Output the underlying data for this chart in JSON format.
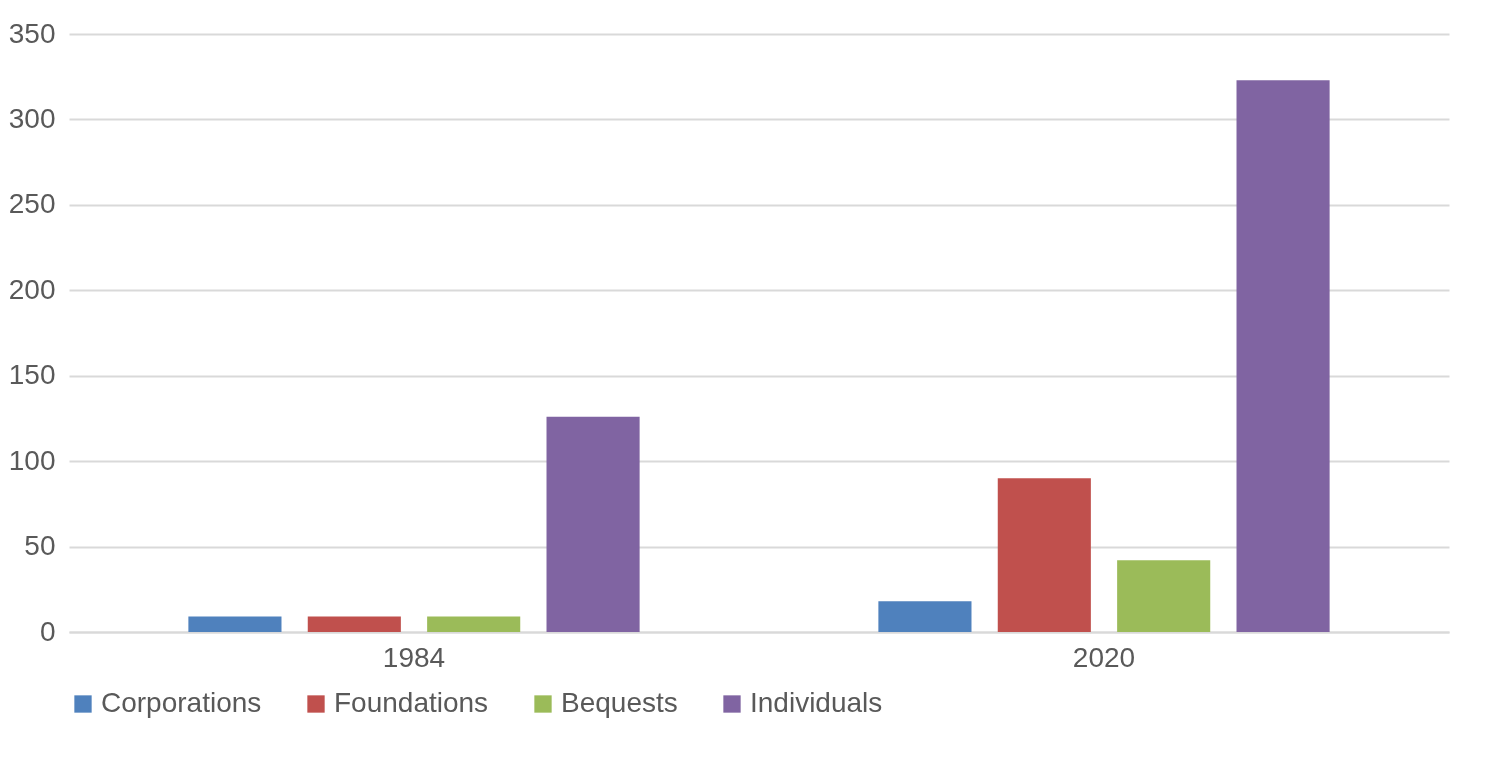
{
  "chart_data": {
    "type": "bar",
    "categories": [
      "1984",
      "2020"
    ],
    "series": [
      {
        "name": "Corporations",
        "color": "#4f81bd",
        "values": [
          9,
          18
        ]
      },
      {
        "name": "Foundations",
        "color": "#c0504d",
        "values": [
          9,
          90
        ]
      },
      {
        "name": "Bequests",
        "color": "#9bbb59",
        "values": [
          9,
          42
        ]
      },
      {
        "name": "Individuals",
        "color": "#8064a2",
        "values": [
          126,
          323
        ]
      }
    ],
    "ylim": [
      0,
      350
    ],
    "yticks": [
      0,
      50,
      100,
      150,
      200,
      250,
      300,
      350
    ],
    "grid": "y",
    "legend": "bottom"
  }
}
